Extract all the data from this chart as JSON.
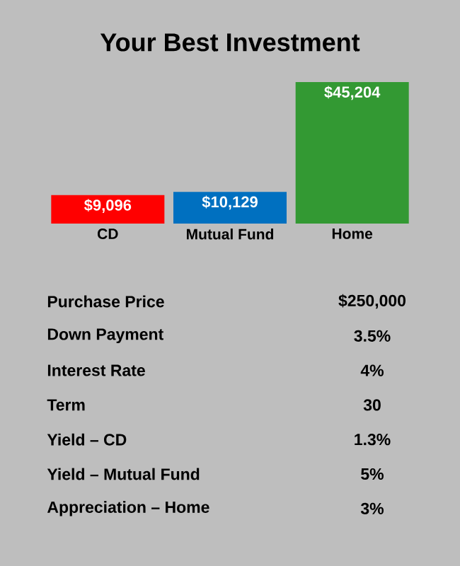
{
  "chart_data": {
    "type": "bar",
    "title": "Your Best Investment",
    "categories": [
      "CD",
      "Mutual Fund",
      "Home"
    ],
    "values": [
      9096,
      10129,
      45204
    ],
    "colors": [
      "#ff0000",
      "#0070c0",
      "#339933"
    ],
    "value_labels": [
      "$9,096",
      "$10,129",
      "$45,204"
    ],
    "annotations": [
      "Purchase Price",
      "$250,000",
      "Down Payment",
      "3.5%",
      "Interest Rate",
      "4%",
      "Term",
      "30",
      "Yield – CD",
      "1.3%",
      "Yield – Mutual Fund",
      "5%",
      "Appreciation – Home",
      "3%"
    ]
  }
}
